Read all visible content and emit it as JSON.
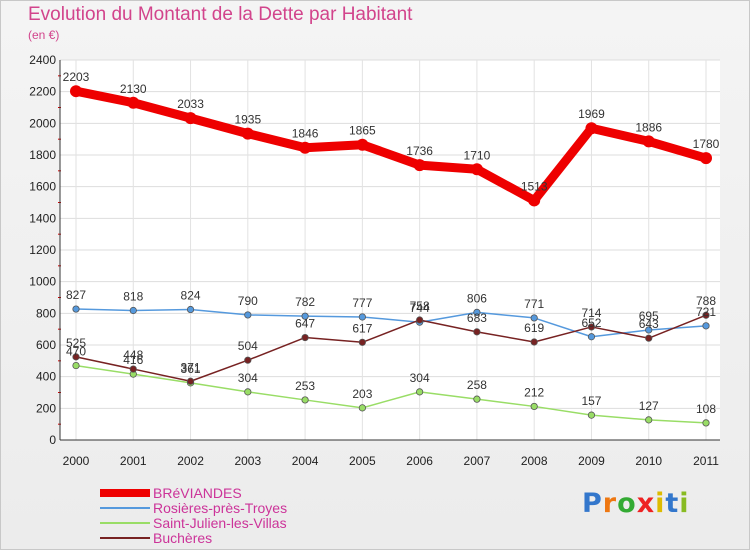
{
  "header": {
    "title": "Evolution du Montant de la Dette par Habitant",
    "subtitle": "(en €)"
  },
  "logo": {
    "text": "Proxiti"
  },
  "chart_data": {
    "type": "line",
    "title": "Evolution du Montant de la Dette par Habitant",
    "subtitle": "(en €)",
    "x": [
      "2000",
      "2001",
      "2002",
      "2003",
      "2004",
      "2005",
      "2006",
      "2007",
      "2008",
      "2009",
      "2010",
      "2011"
    ],
    "ylim": [
      0,
      2400
    ],
    "yticks": [
      0,
      200,
      400,
      600,
      800,
      1000,
      1200,
      1400,
      1600,
      1800,
      2000,
      2200,
      2400
    ],
    "grid": true,
    "legend_position": "bottom-left",
    "series": [
      {
        "name": "BRéVIANDES",
        "color": "#ee0000",
        "values": [
          2203,
          2130,
          2033,
          1935,
          1846,
          1865,
          1736,
          1710,
          1513,
          1969,
          1886,
          1780
        ]
      },
      {
        "name": "Rosières-près-Troyes",
        "color": "#5599dd",
        "values": [
          827,
          818,
          824,
          790,
          782,
          777,
          744,
          806,
          771,
          652,
          695,
          721
        ]
      },
      {
        "name": "Saint-Julien-les-Villas",
        "color": "#99dd66",
        "values": [
          470,
          416,
          361,
          304,
          253,
          203,
          304,
          258,
          212,
          157,
          127,
          108
        ]
      },
      {
        "name": "Buchères",
        "color": "#772222",
        "values": [
          525,
          448,
          371,
          504,
          647,
          617,
          758,
          683,
          619,
          714,
          643,
          788
        ]
      }
    ],
    "point_labels": [
      [
        "2203",
        "2130",
        "2033",
        "1935",
        "1846",
        "1865",
        "1736",
        "1710",
        "1513",
        "1969",
        "1886",
        "1780"
      ],
      [
        "827",
        "818",
        "824",
        "790",
        "782",
        "777",
        "744",
        "806",
        "771",
        "652",
        "695",
        "721"
      ],
      [
        "470",
        "416",
        "361",
        "304",
        "253",
        "203",
        "304",
        "258",
        "212",
        "157",
        "127",
        "108"
      ],
      [
        "525",
        "448",
        "371",
        "504",
        "647",
        "617",
        "758",
        "683",
        "619",
        "714",
        "643",
        "788"
      ]
    ]
  }
}
